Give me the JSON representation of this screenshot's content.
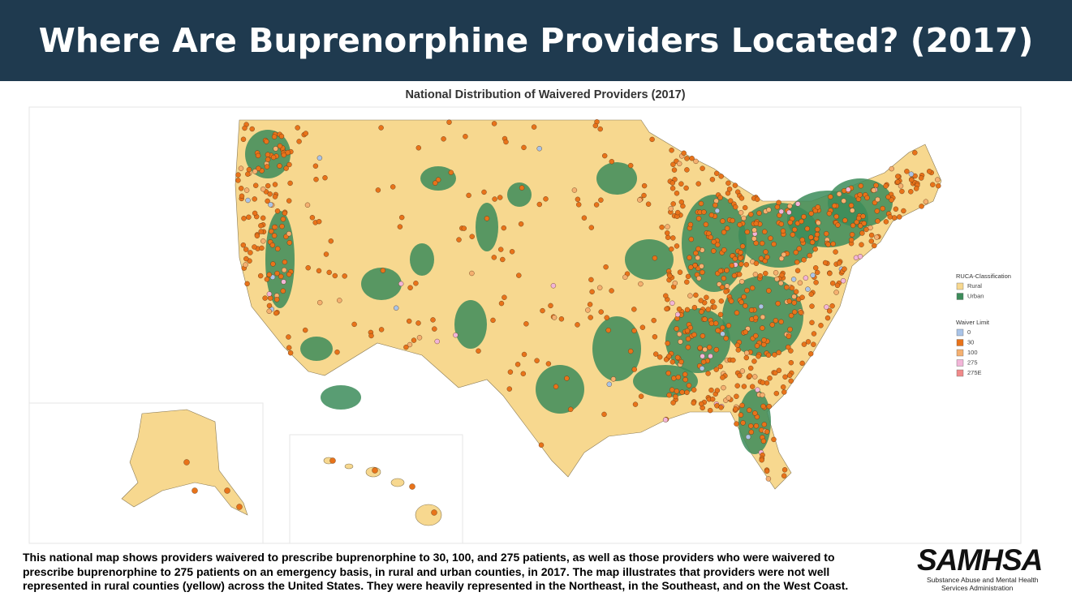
{
  "header": {
    "title": "Where Are Buprenorphine Providers Located? (2017)"
  },
  "map": {
    "title": "National Distribution of Waivered Providers (2017)",
    "legend": {
      "classification": {
        "title": "RUCA-Classification",
        "items": [
          {
            "label": "Rural",
            "color": "#f7d88f"
          },
          {
            "label": "Urban",
            "color": "#3c8c5a"
          }
        ]
      },
      "waiver": {
        "title": "Waiver Limit",
        "items": [
          {
            "label": "0",
            "color": "#a9c4e8"
          },
          {
            "label": "30",
            "color": "#e8731a"
          },
          {
            "label": "100",
            "color": "#f5b070"
          },
          {
            "label": "275",
            "color": "#f2b5d8"
          },
          {
            "label": "275E",
            "color": "#f08a8a"
          }
        ]
      }
    }
  },
  "caption": "This national map shows providers waivered to prescribe buprenorphine to 30, 100, and 275 patients, as well as those providers who were waivered to prescribe buprenorphine to 275 patients on an emergency basis, in rural and urban counties, in 2017. The map illustrates that providers were not well represented in rural counties (yellow) across the United States. They were heavily represented in the Northeast, in the Southeast, and on the West Coast.",
  "logo": {
    "name": "SAMHSA",
    "subtitle": [
      "Substance Abuse and Mental Health",
      "Services Administration"
    ]
  }
}
